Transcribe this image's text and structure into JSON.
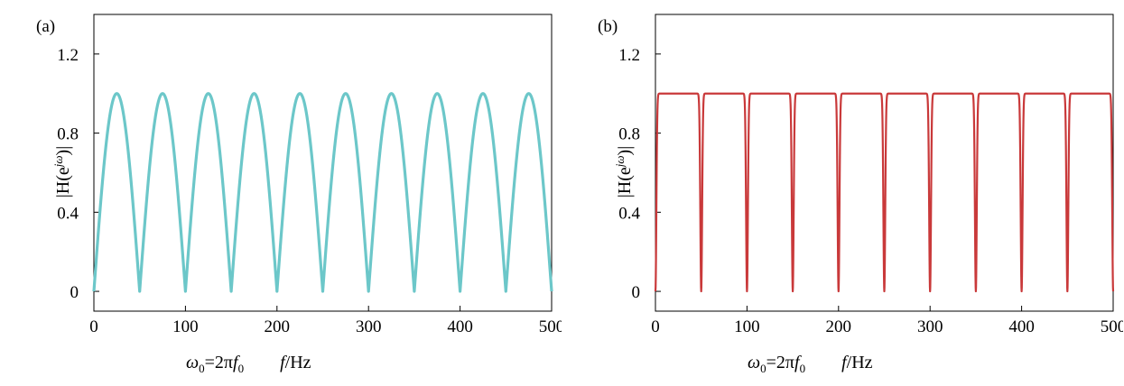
{
  "chart_data": [
    {
      "type": "line",
      "panel_label": "(a)",
      "ylabel": "|H(e^{jω})|",
      "ylabel_parts": {
        "left": "|H(e",
        "sup": "jω",
        "right": ")|"
      },
      "xlabel": {
        "omega": "ω",
        "omega_sub": "0",
        "eq": "=2π",
        "f": "f",
        "f_sub": "0",
        "f_italic": "f",
        "unit": "/Hz"
      },
      "xlim": [
        0,
        500
      ],
      "ylim": [
        -0.1,
        1.4
      ],
      "xticks": [
        0,
        100,
        200,
        300,
        400,
        500
      ],
      "yticks": [
        "0",
        "0.4",
        "0.8",
        "1.2"
      ],
      "ytick_values": [
        0,
        0.4,
        0.8,
        1.2
      ],
      "grid": false,
      "color": "#6cc7c9",
      "series": [
        {
          "shape": "|sin(2πf/100)|",
          "period_hz": 50,
          "zeros_hz": [
            0,
            50,
            100,
            150,
            200,
            250,
            300,
            350,
            400,
            450,
            500
          ],
          "peaks_hz": [
            25,
            75,
            125,
            175,
            225,
            275,
            325,
            375,
            425,
            475
          ],
          "peak_value": 1.0
        }
      ]
    },
    {
      "type": "line",
      "panel_label": "(b)",
      "ylabel": "|H(e^{jω})|",
      "ylabel_parts": {
        "left": "|H(e",
        "sup": "jω",
        "right": ")|"
      },
      "xlabel": {
        "omega": "ω",
        "omega_sub": "0",
        "eq": "=2π",
        "f": "f",
        "f_sub": "0",
        "f_italic": "f",
        "unit": "/Hz"
      },
      "xlim": [
        0,
        500
      ],
      "ylim": [
        -0.1,
        1.4
      ],
      "xticks": [
        0,
        100,
        200,
        300,
        400,
        500
      ],
      "yticks": [
        "0",
        "0.4",
        "0.8",
        "1.2"
      ],
      "ytick_values": [
        0,
        0.4,
        0.8,
        1.2
      ],
      "grid": false,
      "color": "#c9393a",
      "series": [
        {
          "shape": "notch filter",
          "period_hz": 50,
          "notches_hz": [
            0,
            50,
            100,
            150,
            200,
            250,
            300,
            350,
            400,
            450,
            500
          ],
          "passband_value": 1.0
        }
      ]
    }
  ]
}
